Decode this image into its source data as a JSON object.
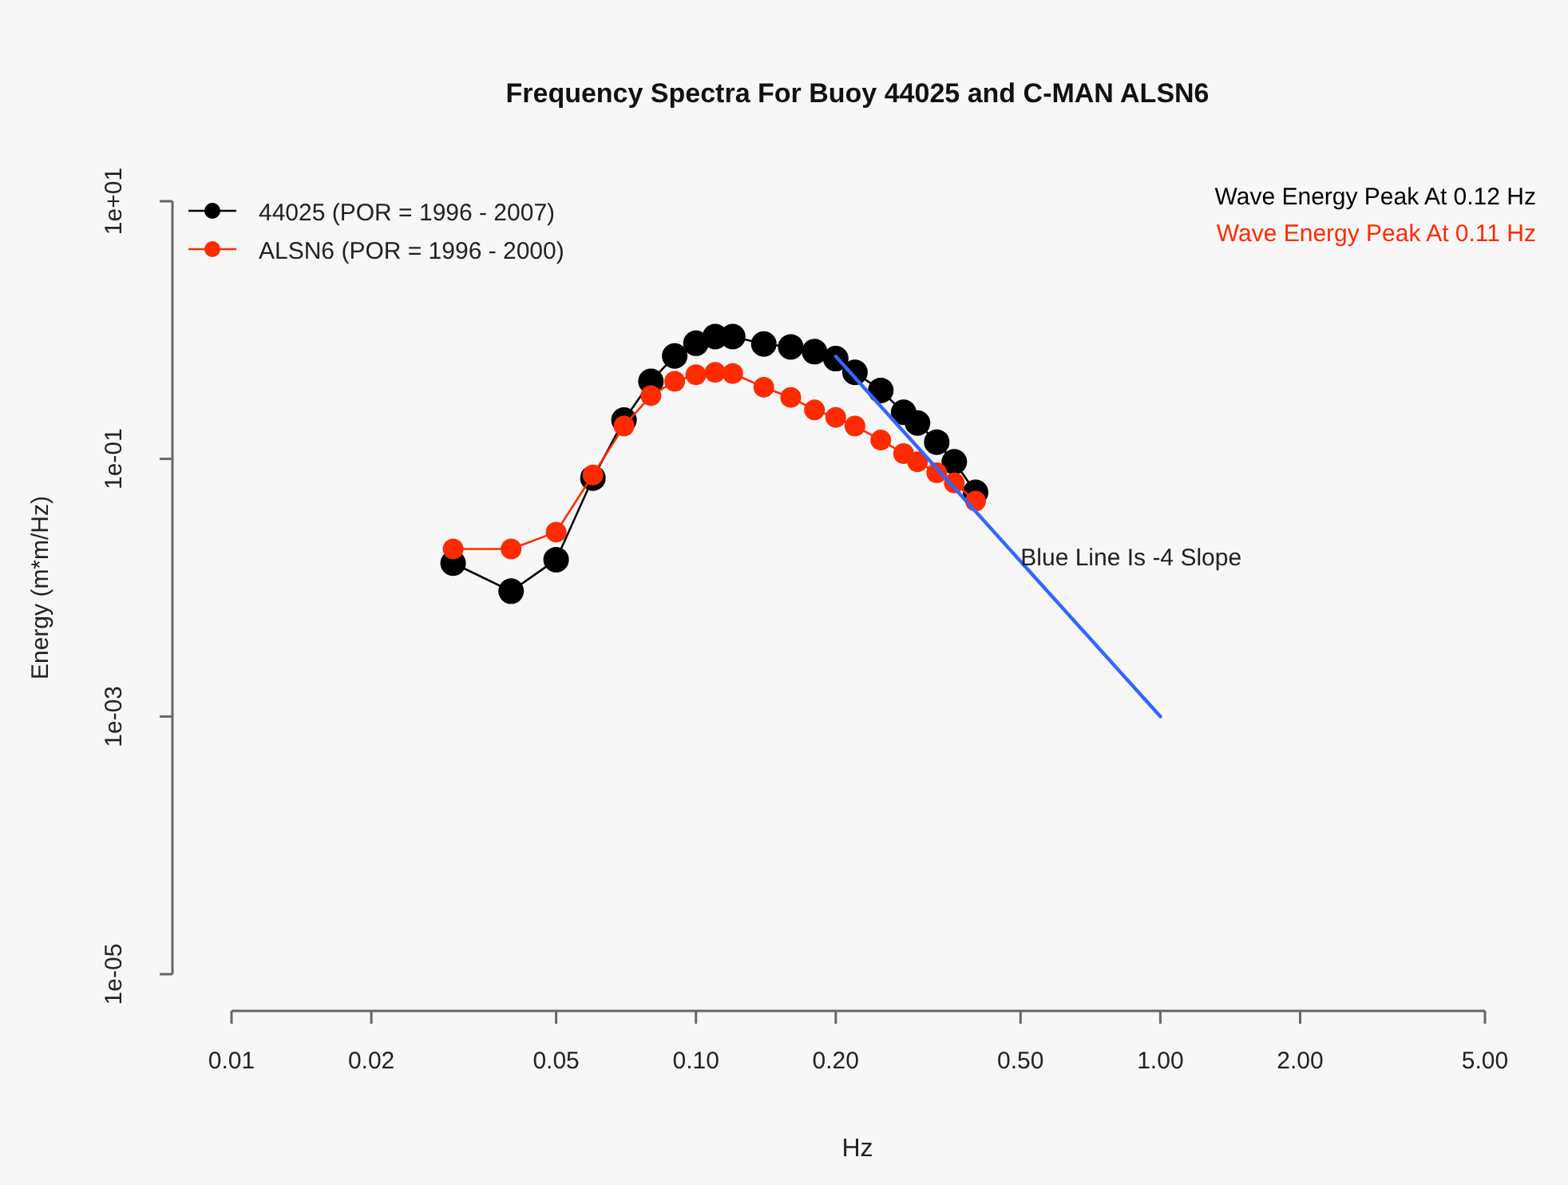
{
  "chart_data": {
    "type": "line",
    "title": "Frequency Spectra For Buoy 44025 and C-MAN ALSN6",
    "xlabel": "Hz",
    "ylabel": "Energy (m*m/Hz)",
    "log": "xy",
    "grid": false,
    "legend": "top left",
    "marker": "circle",
    "line_style": "solid",
    "xlim": [
      0.01,
      5
    ],
    "ylim": [
      1e-05,
      10
    ],
    "xticks": [
      {
        "value": 0.01,
        "label": "0.01"
      },
      {
        "value": 0.02,
        "label": "0.02"
      },
      {
        "value": 0.05,
        "label": "0.05"
      },
      {
        "value": 0.1,
        "label": "0.10"
      },
      {
        "value": 0.2,
        "label": "0.20"
      },
      {
        "value": 0.5,
        "label": "0.50"
      },
      {
        "value": 1,
        "label": "1.00"
      },
      {
        "value": 2,
        "label": "2.00"
      },
      {
        "value": 5,
        "label": "5.00"
      }
    ],
    "yticks": [
      {
        "value": 10,
        "label": "1e+01"
      },
      {
        "value": 0.1,
        "label": "1e-01"
      },
      {
        "value": 0.001,
        "label": "1e-03"
      },
      {
        "value": 1e-05,
        "label": "1e-05"
      }
    ],
    "annotations": [
      "Wave Energy Peak At 0.12 Hz",
      "Wave Energy Peak At 0.11 Hz",
      {
        "text": "Blue Line Is -4 Slope",
        "x": 0.5,
        "y": 0.015
      }
    ],
    "series": [
      {
        "name": "44025 (POR = 1996 - 2007)",
        "color": "#000000",
        "x": [
          0.03,
          0.04,
          0.05,
          0.06,
          0.07,
          0.08,
          0.09,
          0.1,
          0.11,
          0.12,
          0.14,
          0.16,
          0.18,
          0.2,
          0.22,
          0.25,
          0.28,
          0.3,
          0.33,
          0.36,
          0.4
        ],
        "values": [
          0.0155,
          0.0094,
          0.0165,
          0.071,
          0.2,
          0.4,
          0.63,
          0.79,
          0.89,
          0.89,
          0.78,
          0.74,
          0.68,
          0.6,
          0.47,
          0.34,
          0.23,
          0.19,
          0.135,
          0.095,
          0.055
        ]
      },
      {
        "name": "ALSN6 (POR = 1996 - 2000)",
        "color": "#ff2a00",
        "x": [
          0.03,
          0.04,
          0.05,
          0.06,
          0.07,
          0.08,
          0.09,
          0.1,
          0.11,
          0.12,
          0.14,
          0.16,
          0.18,
          0.2,
          0.22,
          0.25,
          0.28,
          0.3,
          0.33,
          0.36,
          0.4
        ],
        "values": [
          0.02,
          0.02,
          0.027,
          0.075,
          0.18,
          0.31,
          0.4,
          0.45,
          0.47,
          0.46,
          0.36,
          0.3,
          0.24,
          0.21,
          0.18,
          0.14,
          0.11,
          0.095,
          0.078,
          0.065,
          0.047
        ]
      },
      {
        "color": "#3366ff",
        "marker": "none",
        "x": [
          0.2,
          1
        ],
        "values": [
          0.625,
          0.001
        ]
      }
    ]
  }
}
